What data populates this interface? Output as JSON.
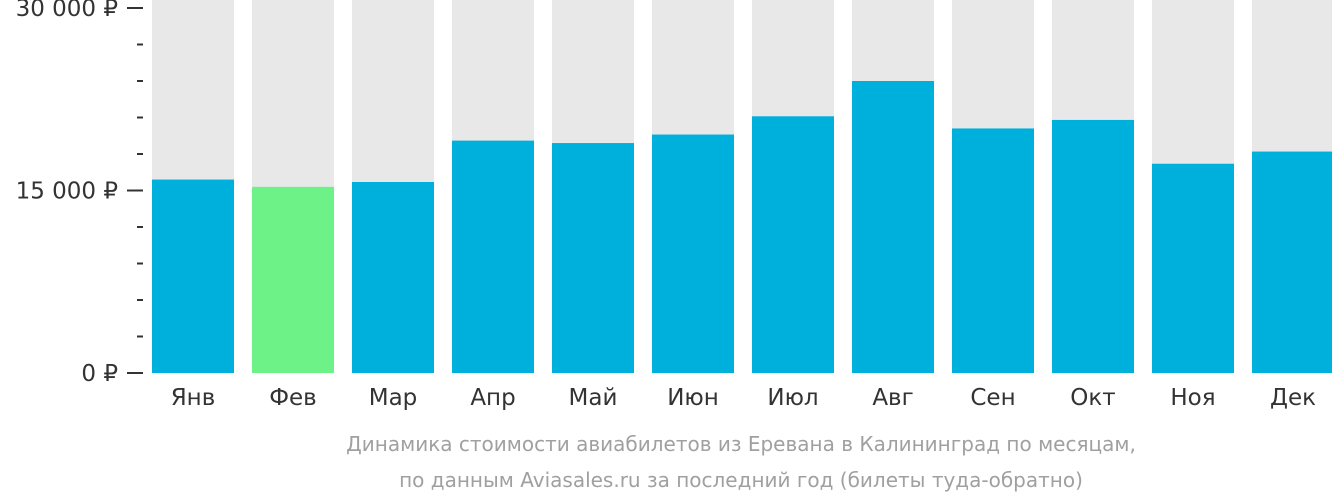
{
  "chart_data": {
    "type": "bar",
    "categories": [
      "Янв",
      "Фев",
      "Мар",
      "Апр",
      "Май",
      "Июн",
      "Июл",
      "Авг",
      "Сен",
      "Окт",
      "Ноя",
      "Дек"
    ],
    "values": [
      15900,
      15300,
      15700,
      19100,
      18900,
      19600,
      21100,
      24000,
      20100,
      20800,
      17200,
      18200
    ],
    "highlight_index": 1,
    "ylim": [
      0,
      30000
    ],
    "ytick_labels": [
      {
        "value": 30000,
        "label": "30 000 ₽"
      },
      {
        "value": 15000,
        "label": "15 000 ₽"
      },
      {
        "value": 0,
        "label": "0 ₽"
      }
    ],
    "minor_tick_step": 3000,
    "colors": {
      "bar": "#00b0dc",
      "highlight": "#6cf287",
      "track": "#e8e8e8",
      "axis_text": "#333333",
      "caption": "#a0a0a0"
    }
  },
  "caption": {
    "line1": "Динамика стоимости авиабилетов из Еревана в Калининград по месяцам,",
    "line2": "по данным Aviasales.ru за последний год (билеты туда-обратно)"
  }
}
